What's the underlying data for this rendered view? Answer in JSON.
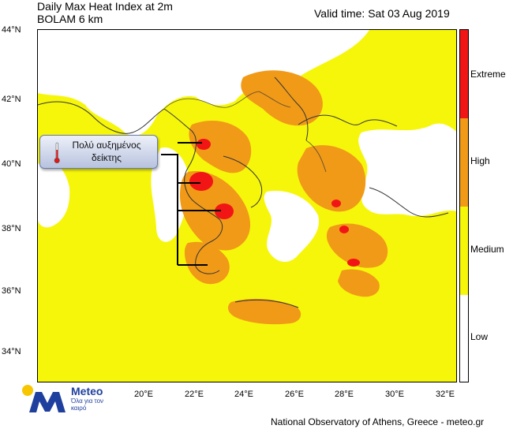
{
  "header": {
    "title": "Daily Max Heat Index at 2m",
    "model": "BOLAM 6 km",
    "valid_time": "Valid time: Sat 03 Aug 2019"
  },
  "map": {
    "lat_labels": [
      "44°N",
      "42°N",
      "40°N",
      "38°N",
      "36°N",
      "34°N"
    ],
    "lon_labels": [
      "20°E",
      "22°E",
      "24°E",
      "26°E",
      "28°E",
      "30°E",
      "32°E"
    ],
    "callout_text": "Πολύ αυξημένος δείκτης"
  },
  "legend": {
    "categories": [
      {
        "label": "Extreme",
        "color": "#f21515"
      },
      {
        "label": "High",
        "color": "#f09a18"
      },
      {
        "label": "Medium",
        "color": "#f6f60a"
      },
      {
        "label": "Low",
        "color": "#ffffff"
      }
    ]
  },
  "logo": {
    "brand": "Meteo",
    "tagline": "Όλα για τον καιρό"
  },
  "footer": {
    "credit": "National Observatory of Athens, Greece - meteo.gr"
  }
}
